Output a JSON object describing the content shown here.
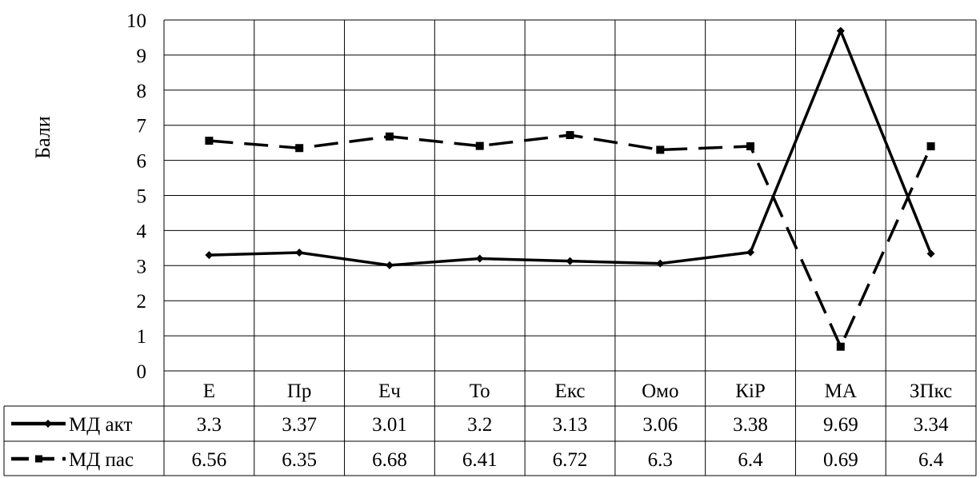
{
  "chart_data": {
    "type": "line",
    "ylabel": "Бали",
    "ylim": [
      0,
      10
    ],
    "yticks": [
      "0",
      "1",
      "2",
      "3",
      "4",
      "5",
      "6",
      "7",
      "8",
      "9",
      "10"
    ],
    "grid": true,
    "legend": "data-table",
    "categories": [
      "Е",
      "Пр",
      "Еч",
      "То",
      "Екс",
      "Омо",
      "КіР",
      "МА",
      "ЗПкс"
    ],
    "series": [
      {
        "name": "МД акт",
        "values": [
          3.3,
          3.37,
          3.01,
          3.2,
          3.13,
          3.06,
          3.38,
          9.69,
          3.34
        ],
        "labels": [
          "3.3",
          "3.37",
          "3.01",
          "3.2",
          "3.13",
          "3.06",
          "3.38",
          "9.69",
          "3.34"
        ],
        "style": "solid",
        "marker": "diamond",
        "color": "#000000"
      },
      {
        "name": "МД пас",
        "values": [
          6.56,
          6.35,
          6.68,
          6.41,
          6.72,
          6.3,
          6.4,
          0.69,
          6.4
        ],
        "labels": [
          "6.56",
          "6.35",
          "6.68",
          "6.41",
          "6.72",
          "6.3",
          "6.4",
          "0.69",
          "6.4"
        ],
        "style": "dashed",
        "marker": "square",
        "color": "#000000"
      }
    ]
  }
}
